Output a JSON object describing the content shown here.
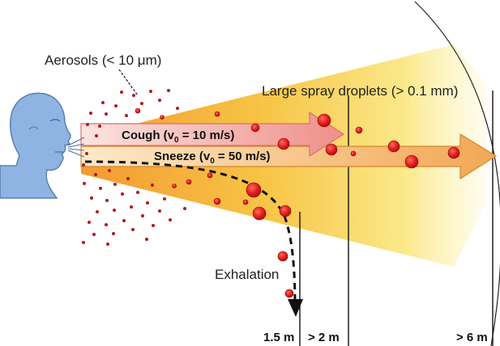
{
  "labels": {
    "aerosols": "Aerosols (< 10 μm)",
    "large_droplets": "Large spray droplets (> 0.1 mm)",
    "cough_prefix": "Cough (v",
    "cough_sub": "0",
    "cough_suffix": " = 10 m/s)",
    "sneeze_prefix": "Sneeze (v",
    "sneeze_sub": "0",
    "sneeze_suffix": " = 50 m/s)",
    "exhalation": "Exhalation"
  },
  "distances": [
    {
      "label": "1.5 m"
    },
    {
      "label": "> 2 m"
    },
    {
      "label": "> 6 m"
    }
  ],
  "colors": {
    "face": "#8fb4e3",
    "face_stroke": "#5a7fb0",
    "cone_inner": "#f2a13a",
    "cone_outer": "#fff6c0",
    "cough_arrow": "#f4a6a0",
    "sneeze_arrow": "#f3b26a",
    "droplet": "#e01e1e",
    "aerosol": "#b2191c"
  }
}
